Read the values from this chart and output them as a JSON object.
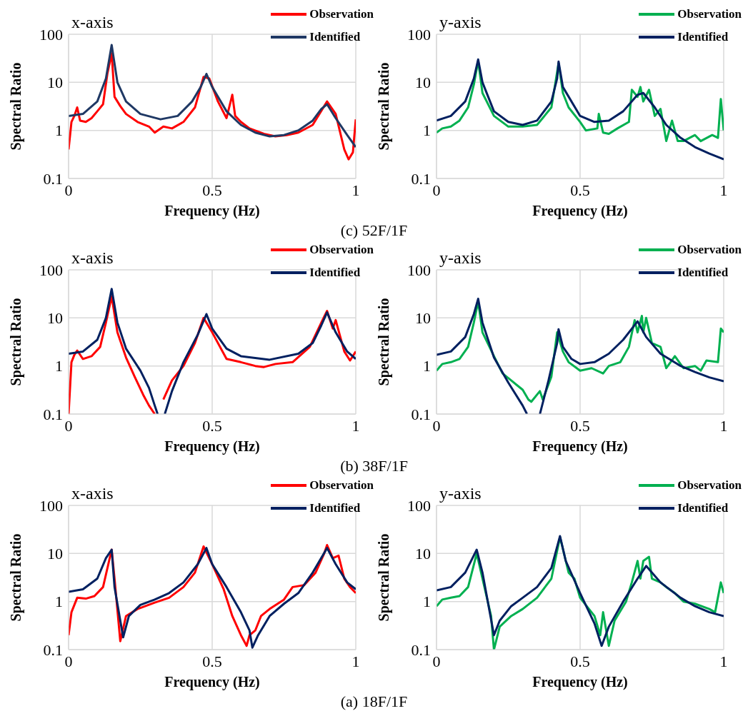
{
  "chart_data": [
    {
      "type": "line",
      "title": "x-axis",
      "xlabel": "Frequency (Hz)",
      "ylabel": "Spectral Ratio",
      "xlim": [
        0,
        1
      ],
      "xticks": [
        0,
        0.5,
        1
      ],
      "ylim": [
        0.1,
        100
      ],
      "yticks": [
        0.1,
        1,
        10,
        100
      ],
      "log": "y",
      "grid": true,
      "legend": "top right",
      "annotations": [
        "(c) 52F/1F"
      ],
      "series": [
        {
          "name": "Observation",
          "color": "#ff0000",
          "x": [
            0,
            0.01,
            0.02,
            0.03,
            0.04,
            0.06,
            0.08,
            0.1,
            0.12,
            0.135,
            0.15,
            0.16,
            0.18,
            0.2,
            0.24,
            0.28,
            0.3,
            0.33,
            0.36,
            0.4,
            0.44,
            0.47,
            0.49,
            0.52,
            0.55,
            0.57,
            0.58,
            0.6,
            0.63,
            0.68,
            0.72,
            0.76,
            0.8,
            0.85,
            0.9,
            0.93,
            0.96,
            0.975,
            0.99,
            1
          ],
          "values": [
            0.4,
            1.5,
            2,
            3,
            1.6,
            1.5,
            1.8,
            2.5,
            3.5,
            15,
            40,
            5,
            3.2,
            2.2,
            1.5,
            1.2,
            0.9,
            1.2,
            1.1,
            1.5,
            3,
            13,
            12,
            4,
            1.8,
            5.5,
            2,
            1.5,
            1.1,
            0.85,
            0.75,
            0.8,
            0.9,
            1.3,
            4,
            2.2,
            0.4,
            0.25,
            0.35,
            1.7
          ]
        },
        {
          "name": "Identified",
          "color": "#1f3864",
          "x": [
            0,
            0.05,
            0.1,
            0.13,
            0.15,
            0.17,
            0.2,
            0.25,
            0.32,
            0.38,
            0.43,
            0.46,
            0.48,
            0.5,
            0.55,
            0.6,
            0.65,
            0.7,
            0.75,
            0.8,
            0.85,
            0.88,
            0.9,
            0.93,
            0.97,
            1
          ],
          "values": [
            2,
            2.2,
            4,
            12,
            60,
            10,
            4,
            2.2,
            1.7,
            2,
            4,
            8,
            15,
            8,
            2.5,
            1.3,
            0.9,
            0.75,
            0.8,
            1,
            1.6,
            2.8,
            3.5,
            1.8,
            0.8,
            0.45
          ]
        }
      ]
    },
    {
      "type": "line",
      "title": "y-axis",
      "xlabel": "Frequency (Hz)",
      "ylabel": "Spectral Ratio",
      "xlim": [
        0,
        1
      ],
      "xticks": [
        0,
        0.5,
        1
      ],
      "ylim": [
        0.1,
        100
      ],
      "yticks": [
        0.1,
        1,
        10,
        100
      ],
      "log": "y",
      "grid": true,
      "legend": "top right",
      "series": [
        {
          "name": "Observation",
          "color": "#00b050",
          "x": [
            0,
            0.02,
            0.05,
            0.08,
            0.11,
            0.13,
            0.145,
            0.16,
            0.2,
            0.25,
            0.3,
            0.35,
            0.4,
            0.425,
            0.44,
            0.46,
            0.5,
            0.52,
            0.56,
            0.565,
            0.58,
            0.6,
            0.63,
            0.67,
            0.68,
            0.7,
            0.71,
            0.72,
            0.74,
            0.76,
            0.78,
            0.8,
            0.82,
            0.84,
            0.86,
            0.9,
            0.92,
            0.96,
            0.98,
            0.99,
            1
          ],
          "values": [
            0.9,
            1.1,
            1.2,
            1.6,
            3,
            9,
            28,
            6,
            2,
            1.2,
            1.2,
            1.3,
            3,
            25,
            6,
            3,
            1.5,
            1,
            1.1,
            2.2,
            0.9,
            0.85,
            1.1,
            1.5,
            7,
            5,
            8,
            4,
            7,
            2,
            2.8,
            0.6,
            1.6,
            0.6,
            0.6,
            0.8,
            0.6,
            0.8,
            0.7,
            4.5,
            1
          ]
        },
        {
          "name": "Identified",
          "color": "#002060",
          "x": [
            0,
            0.05,
            0.1,
            0.13,
            0.145,
            0.16,
            0.2,
            0.25,
            0.3,
            0.35,
            0.4,
            0.42,
            0.425,
            0.44,
            0.5,
            0.55,
            0.6,
            0.65,
            0.7,
            0.72,
            0.76,
            0.8,
            0.85,
            0.9,
            0.95,
            1
          ],
          "values": [
            1.6,
            2,
            4,
            12,
            30,
            10,
            2.5,
            1.5,
            1.3,
            1.6,
            4,
            12,
            27,
            8,
            2,
            1.5,
            1.6,
            2.5,
            5.5,
            6,
            3,
            1.3,
            0.7,
            0.45,
            0.33,
            0.25
          ]
        }
      ]
    },
    {
      "type": "line",
      "title": "x-axis",
      "xlabel": "Frequency (Hz)",
      "ylabel": "Spectral Ratio",
      "xlim": [
        0,
        1
      ],
      "xticks": [
        0,
        0.5,
        1
      ],
      "ylim": [
        0.1,
        100
      ],
      "yticks": [
        0.1,
        1,
        10,
        100
      ],
      "log": "y",
      "grid": true,
      "legend": "top right",
      "annotations": [
        "(b) 38F/1F"
      ],
      "series": [
        {
          "name": "Observation",
          "color": "#ff0000",
          "x": [
            0,
            0.01,
            0.02,
            0.03,
            0.05,
            0.08,
            0.11,
            0.13,
            0.15,
            0.17,
            0.2,
            0.23,
            0.26,
            0.28,
            0.3,
            0.31,
            0.33,
            0.36,
            0.4,
            0.44,
            0.47,
            0.5,
            0.55,
            0.6,
            0.65,
            0.68,
            0.72,
            0.78,
            0.84,
            0.88,
            0.9,
            0.92,
            0.93,
            0.96,
            0.98,
            1
          ],
          "values": [
            0.1,
            1.2,
            1.7,
            2.1,
            1.4,
            1.6,
            2.5,
            8,
            28,
            5,
            1.5,
            0.6,
            0.25,
            0.15,
            0.1,
            null,
            0.2,
            0.5,
            1,
            3,
            10,
            5,
            1.4,
            1.2,
            1,
            0.95,
            1.1,
            1.2,
            2.5,
            8,
            14,
            6,
            9,
            2,
            1.3,
            2
          ]
        },
        {
          "name": "Identified",
          "color": "#002060",
          "x": [
            0,
            0.05,
            0.1,
            0.13,
            0.15,
            0.17,
            0.2,
            0.25,
            0.28,
            0.3,
            0.31,
            0.32,
            0.335,
            0.36,
            0.4,
            0.45,
            0.48,
            0.5,
            0.55,
            0.6,
            0.7,
            0.8,
            0.85,
            0.88,
            0.9,
            0.93,
            0.97,
            1
          ],
          "values": [
            1.8,
            2,
            3.5,
            10,
            40,
            8,
            2.3,
            0.8,
            0.35,
            0.15,
            0.1,
            null,
            0.1,
            0.3,
            1.2,
            4.5,
            12,
            6,
            2.3,
            1.6,
            1.35,
            1.8,
            3,
            7,
            13,
            5,
            2,
            1.4
          ]
        }
      ]
    },
    {
      "type": "line",
      "title": "y-axis",
      "xlabel": "Frequency (Hz)",
      "ylabel": "Spectral Ratio",
      "xlim": [
        0,
        1
      ],
      "xticks": [
        0,
        0.5,
        1
      ],
      "ylim": [
        0.1,
        100
      ],
      "yticks": [
        0.1,
        1,
        10,
        100
      ],
      "log": "y",
      "grid": true,
      "legend": "top right",
      "series": [
        {
          "name": "Observation",
          "color": "#00b050",
          "x": [
            0,
            0.02,
            0.05,
            0.08,
            0.11,
            0.13,
            0.145,
            0.16,
            0.2,
            0.23,
            0.26,
            0.28,
            0.3,
            0.32,
            0.33,
            0.36,
            0.37,
            0.4,
            0.42,
            0.44,
            0.46,
            0.5,
            0.54,
            0.58,
            0.6,
            0.64,
            0.67,
            0.69,
            0.7,
            0.715,
            0.72,
            0.73,
            0.75,
            0.78,
            0.8,
            0.83,
            0.86,
            0.9,
            0.92,
            0.94,
            0.98,
            0.99,
            1
          ],
          "values": [
            0.8,
            1.1,
            1.2,
            1.4,
            2.5,
            8,
            22,
            5,
            1.6,
            0.7,
            0.5,
            0.4,
            0.32,
            0.2,
            0.18,
            0.3,
            0.2,
            0.6,
            5,
            2,
            1.2,
            0.8,
            0.9,
            0.7,
            1,
            1.2,
            2.5,
            9,
            5,
            11,
            5,
            10,
            3,
            2.5,
            0.9,
            1.6,
            0.9,
            1,
            0.8,
            1.3,
            1.2,
            6,
            5
          ]
        },
        {
          "name": "Identified",
          "color": "#002060",
          "x": [
            0,
            0.05,
            0.1,
            0.13,
            0.145,
            0.16,
            0.2,
            0.25,
            0.3,
            0.315,
            0.33,
            0.36,
            0.39,
            0.42,
            0.425,
            0.44,
            0.47,
            0.5,
            0.55,
            0.6,
            0.65,
            0.7,
            0.73,
            0.78,
            0.85,
            0.9,
            0.95,
            1
          ],
          "values": [
            1.7,
            2,
            4,
            12,
            25,
            8,
            1.5,
            0.45,
            0.15,
            0.1,
            null,
            0.1,
            0.5,
            3,
            5.8,
            2.5,
            1.4,
            1.1,
            1.2,
            1.8,
            3.5,
            8.5,
            4,
            1.8,
            1,
            0.75,
            0.58,
            0.48
          ]
        }
      ]
    },
    {
      "type": "line",
      "title": "x-axis",
      "xlabel": "Frequency (Hz)",
      "ylabel": "Spectral Ratio",
      "xlim": [
        0,
        1
      ],
      "xticks": [
        0,
        0.5,
        1
      ],
      "ylim": [
        0.1,
        100
      ],
      "yticks": [
        0.1,
        1,
        10,
        100
      ],
      "log": "y",
      "grid": true,
      "legend": "top right",
      "annotations": [
        "(a) 18F/1F"
      ],
      "series": [
        {
          "name": "Observation",
          "color": "#ff0000",
          "x": [
            0,
            0.01,
            0.03,
            0.06,
            0.09,
            0.12,
            0.15,
            0.16,
            0.18,
            0.2,
            0.24,
            0.3,
            0.35,
            0.4,
            0.44,
            0.47,
            0.5,
            0.54,
            0.57,
            0.6,
            0.62,
            0.63,
            0.65,
            0.67,
            0.7,
            0.75,
            0.78,
            0.82,
            0.86,
            0.89,
            0.9,
            0.92,
            0.94,
            0.96,
            0.98,
            1
          ],
          "values": [
            0.2,
            0.6,
            1.2,
            1.15,
            1.3,
            2,
            12,
            3,
            0.15,
            0.5,
            0.7,
            0.95,
            1.2,
            2,
            4,
            14,
            6,
            1.8,
            0.5,
            0.2,
            0.12,
            0.2,
            0.25,
            0.5,
            0.7,
            1.1,
            2,
            2.2,
            4,
            10,
            15,
            8,
            9,
            3,
            2,
            1.5
          ]
        },
        {
          "name": "Identified",
          "color": "#002060",
          "x": [
            0,
            0.05,
            0.1,
            0.13,
            0.15,
            0.16,
            0.19,
            0.21,
            0.25,
            0.3,
            0.35,
            0.4,
            0.45,
            0.48,
            0.5,
            0.55,
            0.6,
            0.63,
            0.64,
            0.66,
            0.7,
            0.75,
            0.8,
            0.85,
            0.9,
            0.93,
            0.97,
            1
          ],
          "values": [
            1.6,
            1.8,
            3,
            8,
            12,
            2,
            0.18,
            0.5,
            0.85,
            1.1,
            1.5,
            2.5,
            6,
            13,
            6,
            2,
            0.6,
            0.25,
            0.11,
            0.2,
            0.5,
            0.9,
            1.5,
            4,
            13,
            6,
            2.5,
            1.8
          ]
        }
      ]
    },
    {
      "type": "line",
      "title": "y-axis",
      "xlabel": "Frequency (Hz)",
      "ylabel": "Spectral Ratio",
      "xlim": [
        0,
        1
      ],
      "xticks": [
        0,
        0.5,
        1
      ],
      "ylim": [
        0.1,
        100
      ],
      "yticks": [
        0.1,
        1,
        10,
        100
      ],
      "log": "y",
      "grid": true,
      "legend": "top right",
      "series": [
        {
          "name": "Observation",
          "color": "#00b050",
          "x": [
            0,
            0.02,
            0.05,
            0.08,
            0.11,
            0.14,
            0.16,
            0.19,
            0.2,
            0.22,
            0.26,
            0.3,
            0.35,
            0.4,
            0.43,
            0.46,
            0.48,
            0.5,
            0.55,
            0.57,
            0.58,
            0.6,
            0.62,
            0.66,
            0.68,
            0.7,
            0.71,
            0.72,
            0.74,
            0.75,
            0.78,
            0.8,
            0.83,
            0.86,
            0.9,
            0.95,
            0.97,
            0.99,
            1
          ],
          "values": [
            0.8,
            1.1,
            1.2,
            1.3,
            2,
            10,
            3,
            0.5,
            0.1,
            0.3,
            0.5,
            0.7,
            1.2,
            3,
            22,
            4,
            3,
            1.2,
            0.5,
            0.2,
            0.6,
            0.12,
            0.4,
            1,
            2.5,
            7,
            3,
            7,
            8.5,
            3,
            2.5,
            2,
            1.5,
            1,
            0.9,
            0.7,
            0.6,
            2.5,
            1.5
          ]
        },
        {
          "name": "Identified",
          "color": "#002060",
          "x": [
            0,
            0.05,
            0.1,
            0.14,
            0.16,
            0.2,
            0.22,
            0.26,
            0.3,
            0.35,
            0.4,
            0.43,
            0.45,
            0.5,
            0.55,
            0.575,
            0.6,
            0.65,
            0.7,
            0.73,
            0.78,
            0.85,
            0.9,
            0.95,
            1
          ],
          "values": [
            1.7,
            2,
            4,
            12,
            4,
            0.2,
            0.4,
            0.8,
            1.2,
            2,
            5,
            23,
            7,
            1.5,
            0.35,
            0.12,
            0.3,
            1,
            3,
            5.5,
            2.5,
            1.2,
            0.8,
            0.6,
            0.5
          ]
        }
      ]
    }
  ]
}
